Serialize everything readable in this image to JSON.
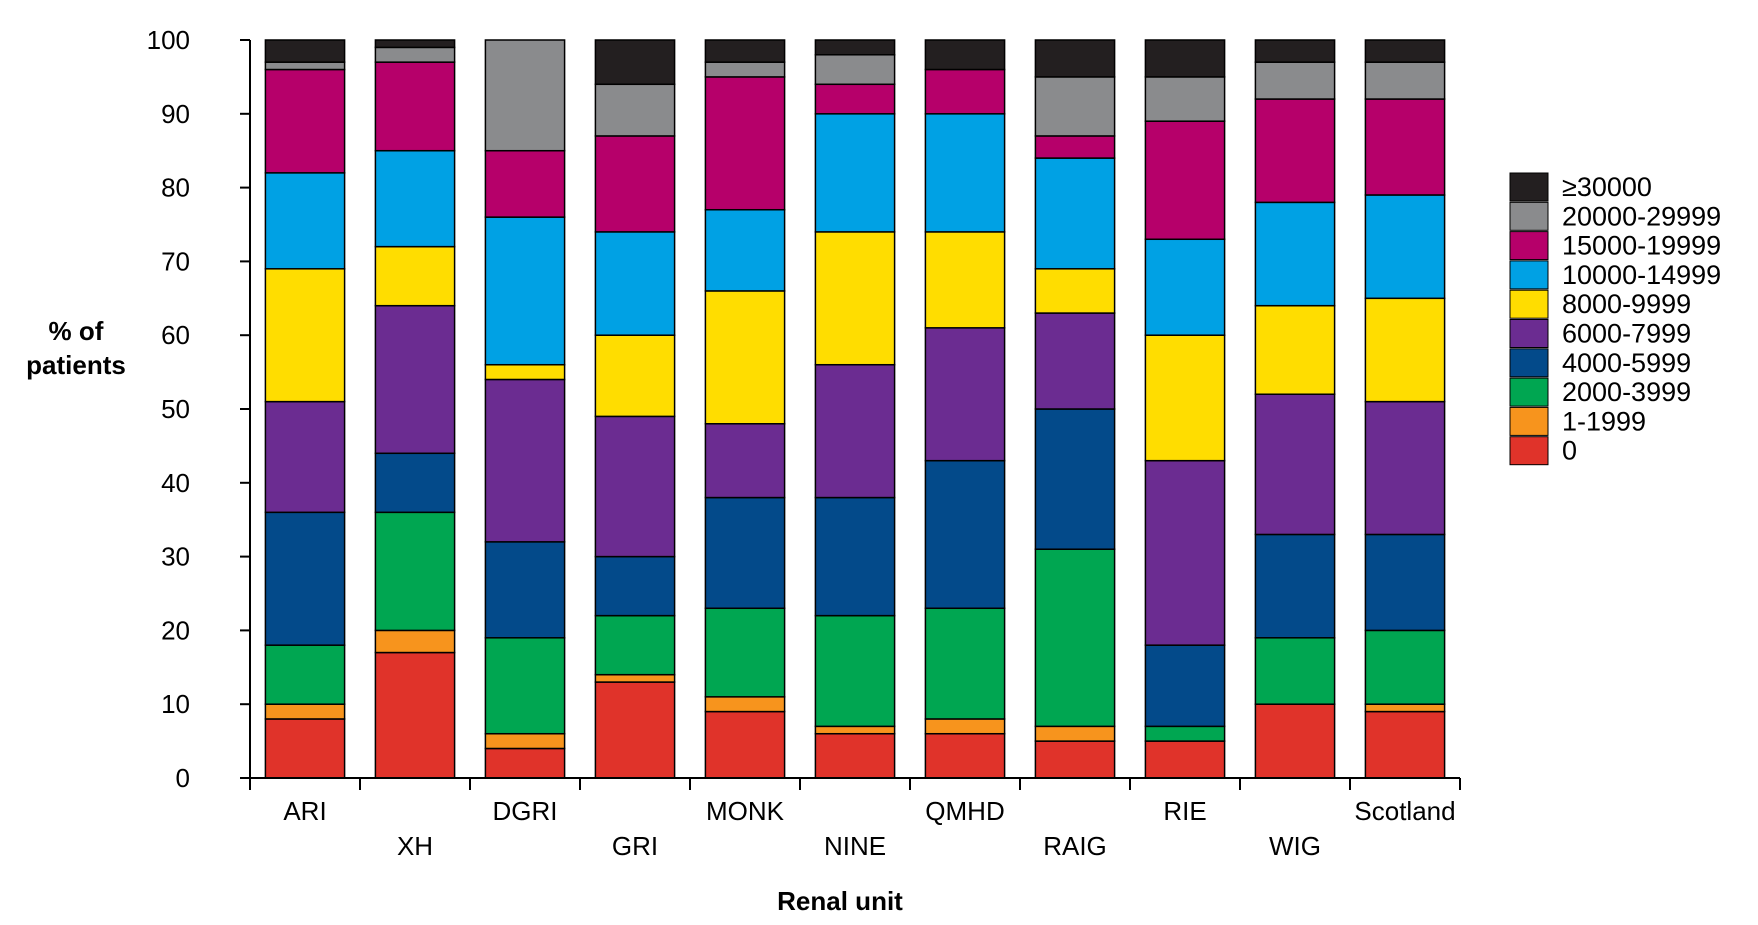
{
  "chart_data": {
    "type": "bar",
    "stacked": true,
    "title": "",
    "xlabel": "Renal unit",
    "ylabel": "% of patients",
    "ylim": [
      0,
      100
    ],
    "yticks": [
      "0",
      "10",
      "20",
      "30",
      "40",
      "50",
      "60",
      "70",
      "80",
      "90",
      "100"
    ],
    "categories": [
      "ARI",
      "XH",
      "DGRI",
      "GRI",
      "MONK",
      "NINE",
      "QMHD",
      "RAIG",
      "RIE",
      "WIG",
      "Scotland"
    ],
    "legend_position": "right",
    "series": [
      {
        "name": "0",
        "color": "#e0332a",
        "values": [
          8,
          17,
          4,
          13,
          9,
          6,
          6,
          5,
          5,
          10,
          9
        ]
      },
      {
        "name": "1-1999",
        "color": "#f7941d",
        "values": [
          2,
          3,
          2,
          1,
          2,
          1,
          2,
          2,
          0,
          0,
          1
        ]
      },
      {
        "name": "2000-3999",
        "color": "#00a651",
        "values": [
          8,
          16,
          13,
          8,
          12,
          15,
          15,
          24,
          2,
          9,
          10
        ]
      },
      {
        "name": "4000-5999",
        "color": "#034a8a",
        "values": [
          18,
          8,
          13,
          8,
          15,
          16,
          20,
          19,
          11,
          14,
          13
        ]
      },
      {
        "name": "6000-7999",
        "color": "#6b2c91",
        "values": [
          15,
          20,
          22,
          19,
          10,
          18,
          18,
          13,
          25,
          19,
          18
        ]
      },
      {
        "name": "8000-9999",
        "color": "#ffdd00",
        "values": [
          18,
          8,
          2,
          11,
          18,
          18,
          13,
          6,
          17,
          12,
          14
        ]
      },
      {
        "name": "10000-14999",
        "color": "#00a1e4",
        "values": [
          13,
          13,
          20,
          14,
          11,
          16,
          16,
          15,
          13,
          14,
          14
        ]
      },
      {
        "name": "15000-19999",
        "color": "#b6006a",
        "values": [
          14,
          12,
          9,
          13,
          18,
          4,
          6,
          3,
          16,
          14,
          13
        ]
      },
      {
        "name": "20000-29999",
        "color": "#8a8b8d",
        "values": [
          1,
          2,
          15,
          7,
          2,
          4,
          0,
          8,
          6,
          5,
          5
        ]
      },
      {
        "name": "≥30000",
        "color": "#231f20",
        "values": [
          3,
          1,
          0,
          6,
          3,
          2,
          4,
          5,
          5,
          3,
          3
        ]
      }
    ]
  }
}
